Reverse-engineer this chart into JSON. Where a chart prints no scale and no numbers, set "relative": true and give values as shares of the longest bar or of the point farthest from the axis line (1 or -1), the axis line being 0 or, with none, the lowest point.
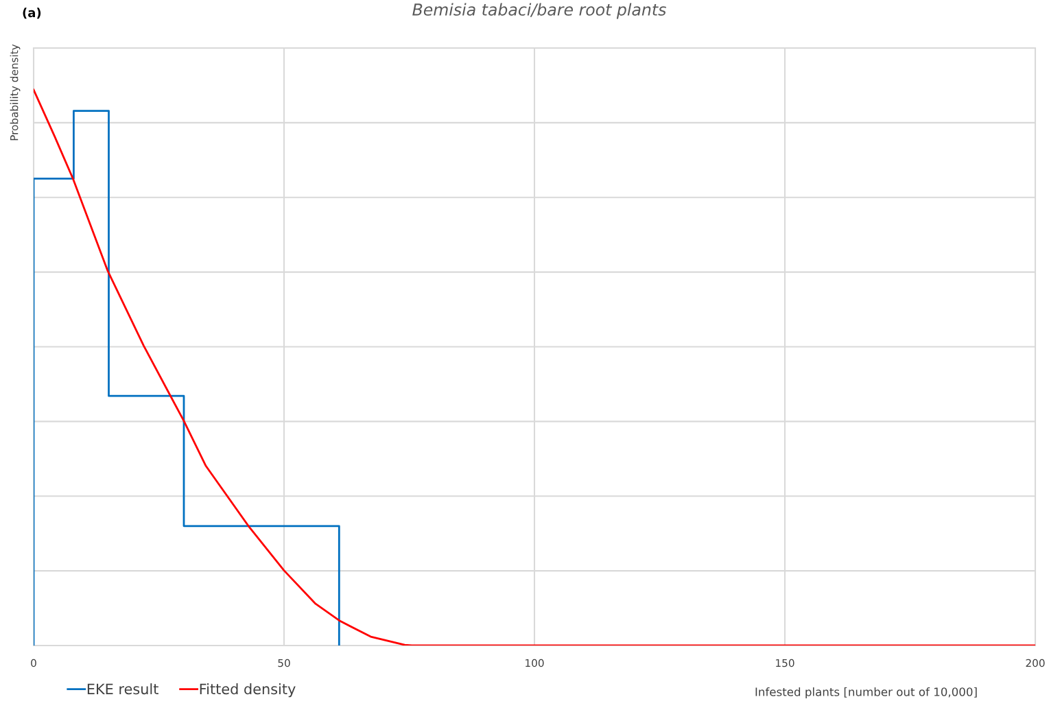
{
  "chart_data": {
    "type": "line",
    "title": "Bemisia tabaci/bare root plants",
    "xlabel": "Infested plants [number out of 10,000]",
    "ylabel": "Probability density",
    "annotations": [
      "(a)"
    ],
    "relative": true,
    "series": [
      {
        "name": "EKE result",
        "type": "step",
        "color": "#0070c0",
        "x": [
          0,
          0,
          8,
          15,
          30,
          61
        ],
        "values": [
          0,
          0.84,
          0.962,
          0.449,
          0.215,
          0
        ]
      },
      {
        "name": "Fitted density",
        "color": "#ff0000",
        "x": [
          0,
          4.2,
          7.9,
          14.8,
          22,
          30,
          34.4,
          42.9,
          50,
          56.3,
          61.2,
          67.3,
          74.1,
          75.5,
          200
        ],
        "values": [
          1,
          0.916,
          0.839,
          0.674,
          0.539,
          0.404,
          0.323,
          0.215,
          0.135,
          0.075,
          0.044,
          0.016,
          0.001,
          0,
          0
        ]
      }
    ],
    "xlim": [
      0,
      200
    ],
    "xticks": [
      0,
      50,
      100,
      150,
      200
    ],
    "grid": true,
    "legend": "bottom left",
    "tick_labels": "x",
    "line_style": "solid",
    "marker": "none"
  }
}
